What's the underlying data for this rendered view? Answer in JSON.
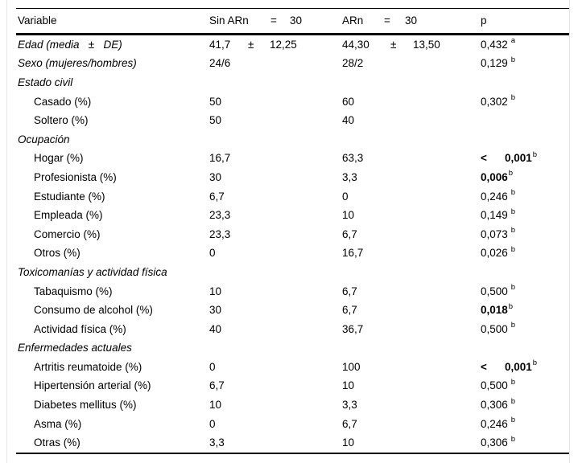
{
  "header": {
    "col_variable": "Variable",
    "col_group1": [
      "Sin ARn",
      "=",
      "30"
    ],
    "col_group2": [
      "ARn",
      "=",
      "30"
    ],
    "col_p": "p"
  },
  "rows": [
    {
      "label": "Edad (media   ±   DE)",
      "italic": true,
      "g1": [
        "41,7",
        "±",
        "12,25"
      ],
      "g2": [
        "44,30",
        "±",
        "13,50"
      ],
      "p": {
        "value": "0,432",
        "sup": "a",
        "bold": false
      }
    },
    {
      "label": "Sexo (mujeres/hombres)",
      "italic": true,
      "g1": [
        "24/6"
      ],
      "g2": [
        "28/2"
      ],
      "p": {
        "value": "0,129",
        "sup": "b",
        "bold": false
      }
    },
    {
      "label": "Estado civil",
      "italic": true,
      "section": true
    },
    {
      "label": "Casado (%)",
      "indent": true,
      "g1": [
        "50"
      ],
      "g2": [
        "60"
      ],
      "p": {
        "value": "0,302",
        "sup": "b",
        "bold": false
      }
    },
    {
      "label": "Soltero (%)",
      "indent": true,
      "g1": [
        "50"
      ],
      "g2": [
        "40"
      ]
    },
    {
      "label": "Ocupación",
      "italic": true,
      "section": true
    },
    {
      "label": "Hogar (%)",
      "indent": true,
      "g1": [
        "16,7"
      ],
      "g2": [
        "63,3"
      ],
      "p": {
        "prefix": "<",
        "value": "0,001",
        "sup": "b",
        "bold": true
      }
    },
    {
      "label": "Profesionista (%)",
      "indent": true,
      "g1": [
        "30"
      ],
      "g2": [
        "3,3"
      ],
      "p": {
        "value": "0,006",
        "sup": "b",
        "bold": true
      }
    },
    {
      "label": "Estudiante (%)",
      "indent": true,
      "g1": [
        "6,7"
      ],
      "g2": [
        "0"
      ],
      "p": {
        "value": "0,246",
        "sup": "b",
        "bold": false
      }
    },
    {
      "label": "Empleada (%)",
      "indent": true,
      "g1": [
        "23,3"
      ],
      "g2": [
        "10"
      ],
      "p": {
        "value": "0,149",
        "sup": "b",
        "bold": false
      }
    },
    {
      "label": "Comercio (%)",
      "indent": true,
      "g1": [
        "23,3"
      ],
      "g2": [
        "6,7"
      ],
      "p": {
        "value": "0,073",
        "sup": "b",
        "bold": false
      }
    },
    {
      "label": "Otros (%)",
      "indent": true,
      "g1": [
        "0"
      ],
      "g2": [
        "16,7"
      ],
      "p": {
        "value": "0,026",
        "sup": "b",
        "bold": false
      }
    },
    {
      "label": "Toxicomanías y actividad física",
      "italic": true,
      "section": true
    },
    {
      "label": "Tabaquismo (%)",
      "indent": true,
      "g1": [
        "10"
      ],
      "g2": [
        "6,7"
      ],
      "p": {
        "value": "0,500",
        "sup": "b",
        "bold": false
      }
    },
    {
      "label": "Consumo de alcohol (%)",
      "indent": true,
      "g1": [
        "30"
      ],
      "g2": [
        "6,7"
      ],
      "p": {
        "value": "0,018",
        "sup": "b",
        "bold": true
      }
    },
    {
      "label": "Actividad física (%)",
      "indent": true,
      "g1": [
        "40"
      ],
      "g2": [
        "36,7"
      ],
      "p": {
        "value": "0,500",
        "sup": "b",
        "bold": false
      }
    },
    {
      "label": "Enfermedades actuales",
      "italic": true,
      "section": true
    },
    {
      "label": "Artritis reumatoide (%)",
      "indent": true,
      "g1": [
        "0"
      ],
      "g2": [
        "100"
      ],
      "p": {
        "prefix": "<",
        "value": "0,001",
        "sup": "b",
        "bold": true
      }
    },
    {
      "label": "Hipertensión arterial (%)",
      "indent": true,
      "g1": [
        "6,7"
      ],
      "g2": [
        "10"
      ],
      "p": {
        "value": "0,500",
        "sup": "b",
        "bold": false
      }
    },
    {
      "label": "Diabetes mellitus (%)",
      "indent": true,
      "g1": [
        "10"
      ],
      "g2": [
        "3,3"
      ],
      "p": {
        "value": "0,306",
        "sup": "b",
        "bold": false
      }
    },
    {
      "label": "Asma (%)",
      "indent": true,
      "g1": [
        "0"
      ],
      "g2": [
        "6,7"
      ],
      "p": {
        "value": "0,246",
        "sup": "b",
        "bold": false
      }
    },
    {
      "label": "Otras (%)",
      "indent": true,
      "g1": [
        "3,3"
      ],
      "g2": [
        "10"
      ],
      "p": {
        "value": "0,306",
        "sup": "b",
        "bold": false
      }
    }
  ],
  "layout_colors": {
    "text": "#000000",
    "rule": "#000000",
    "page": "#ffffff"
  }
}
